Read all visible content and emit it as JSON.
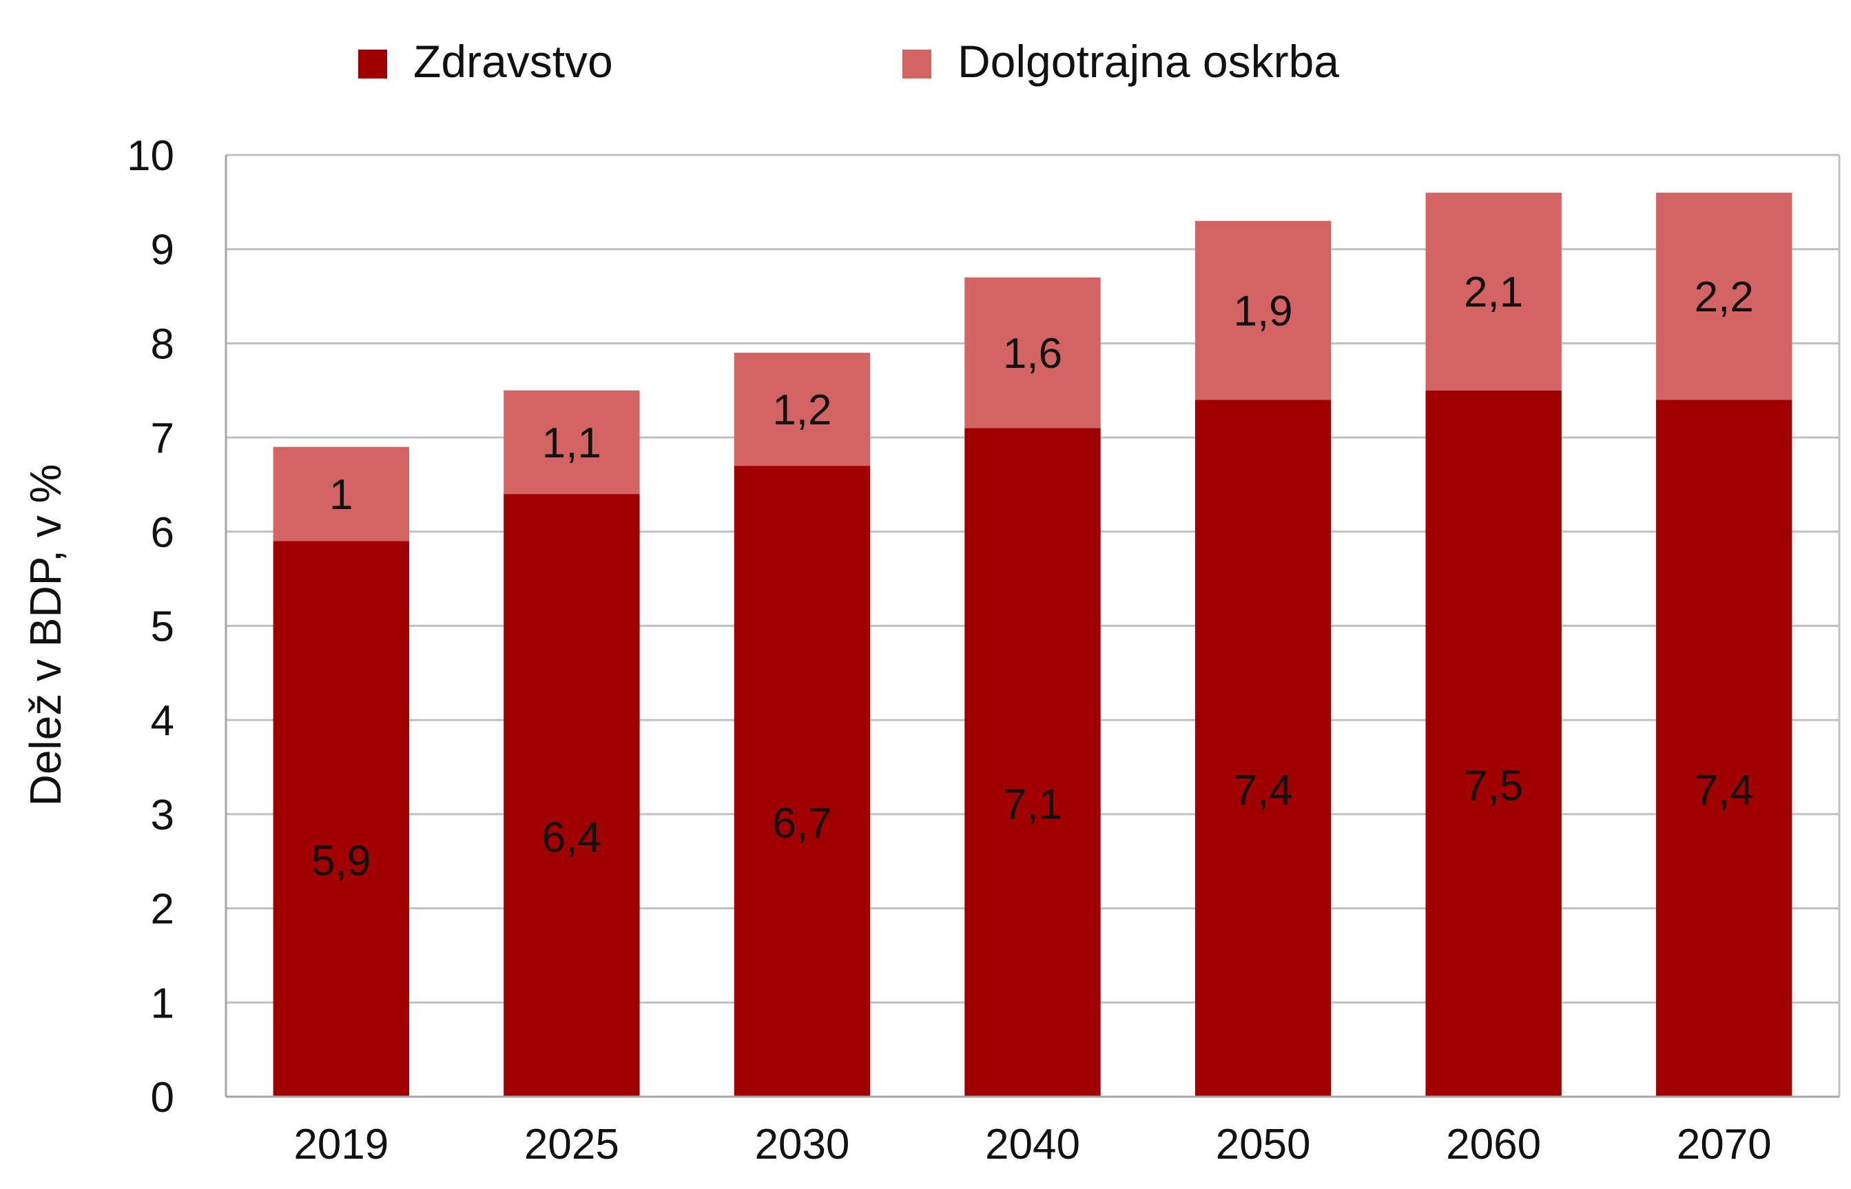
{
  "chart_data": {
    "type": "bar",
    "stacked": true,
    "categories": [
      "2019",
      "2025",
      "2030",
      "2040",
      "2050",
      "2060",
      "2070"
    ],
    "series": [
      {
        "name": "Zdravstvo",
        "color": "#a00000",
        "values": [
          5.9,
          6.4,
          6.7,
          7.1,
          7.4,
          7.5,
          7.4
        ],
        "labels": [
          "5,9",
          "6,4",
          "6,7",
          "7,1",
          "7,4",
          "7,5",
          "7,4"
        ]
      },
      {
        "name": "Dolgotrajna oskrba",
        "color": "#d46464",
        "values": [
          1.0,
          1.1,
          1.2,
          1.6,
          1.9,
          2.1,
          2.2
        ],
        "labels": [
          "1",
          "1,1",
          "1,2",
          "1,6",
          "1,9",
          "2,1",
          "2,2"
        ]
      }
    ],
    "ylabel": "Delež v BDP, v %",
    "ylim": [
      0,
      10
    ],
    "yticks": [
      "0",
      "1",
      "2",
      "3",
      "4",
      "5",
      "6",
      "7",
      "8",
      "9",
      "10"
    ],
    "grid": true,
    "legend_position": "top"
  }
}
